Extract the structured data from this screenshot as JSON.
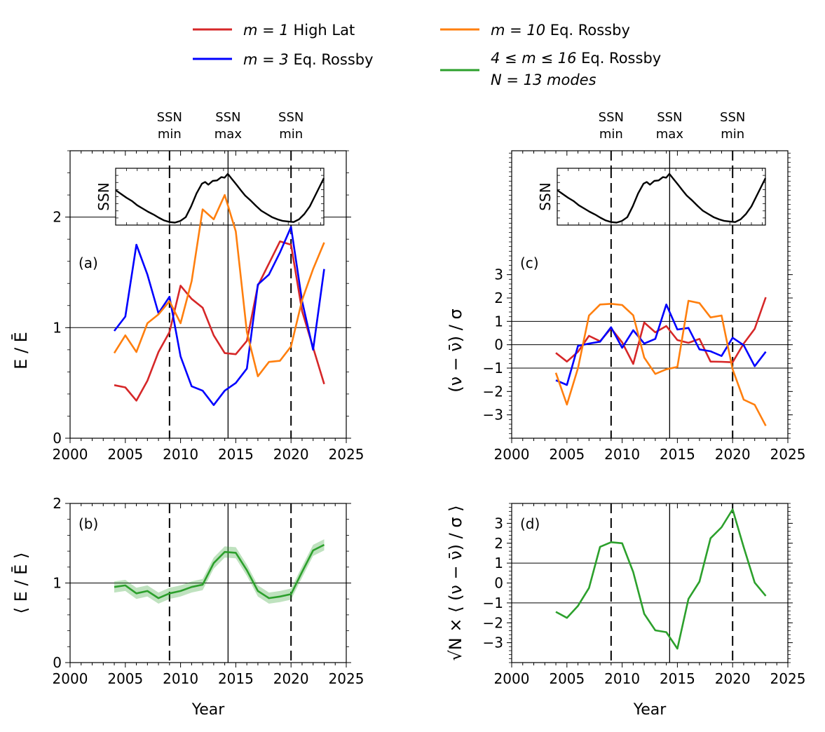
{
  "legend": {
    "entries": [
      {
        "key": "high_lat",
        "label_math": "m = 1",
        "label_text": " High Lat",
        "color": "#d62728"
      },
      {
        "key": "m3",
        "label_math": "m = 3",
        "label_text": " Eq. Rossby",
        "color": "#0000ff"
      },
      {
        "key": "m10",
        "label_math": "m = 10",
        "label_text": " Eq. Rossby",
        "color": "#ff7f0e"
      },
      {
        "key": "band",
        "label_math": "4 ≤ m ≤ 16",
        "label_text": " Eq. Rossby",
        "label_line2": "N = 13 modes",
        "color": "#2ca02c"
      }
    ]
  },
  "ssn_markers": {
    "labels": [
      {
        "year": 2009.0,
        "line1": "SSN",
        "line2": "min",
        "style": "dashed"
      },
      {
        "year": 2014.3,
        "line1": "SSN",
        "line2": "max",
        "style": "solid"
      },
      {
        "year": 2020.0,
        "line1": "SSN",
        "line2": "min",
        "style": "dashed"
      }
    ]
  },
  "chart_data": [
    {
      "panel": "a",
      "type": "line",
      "panel_label": "(a)",
      "ylabel": "E / Ē",
      "xlabel": "",
      "xlim": [
        2000,
        2025
      ],
      "ylim": [
        0,
        2.6
      ],
      "xticks": [
        "2000",
        "2005",
        "2010",
        "2015",
        "2020",
        "2025"
      ],
      "yticks": [
        "0",
        "1",
        "2"
      ],
      "hlines": [
        1,
        2
      ],
      "inset_ylabel": "SSN",
      "x": [
        2004,
        2005,
        2006,
        2007,
        2008,
        2009,
        2010,
        2011,
        2012,
        2013,
        2014,
        2015,
        2016,
        2017,
        2018,
        2019,
        2020,
        2021,
        2022,
        2023
      ],
      "series": [
        {
          "name": "m = 1 High Lat",
          "color": "#d62728",
          "values": [
            0.48,
            0.46,
            0.34,
            0.52,
            0.78,
            0.96,
            1.38,
            1.26,
            1.18,
            0.93,
            0.77,
            0.76,
            0.88,
            1.38,
            1.58,
            1.78,
            1.75,
            1.15,
            0.82,
            0.49
          ]
        },
        {
          "name": "m = 3 Eq. Rossby",
          "color": "#0000ff",
          "values": [
            0.97,
            1.1,
            1.75,
            1.48,
            1.13,
            1.28,
            0.74,
            0.47,
            0.43,
            0.3,
            0.43,
            0.5,
            0.63,
            1.39,
            1.48,
            1.68,
            1.91,
            1.24,
            0.8,
            1.53
          ]
        },
        {
          "name": "m = 10 Eq. Rossby",
          "color": "#ff7f0e",
          "values": [
            0.77,
            0.93,
            0.78,
            1.04,
            1.12,
            1.24,
            1.04,
            1.42,
            2.07,
            1.98,
            2.2,
            1.87,
            0.96,
            0.56,
            0.69,
            0.7,
            0.83,
            1.25,
            1.53,
            1.77
          ]
        }
      ]
    },
    {
      "panel": "b",
      "type": "line",
      "panel_label": "(b)",
      "ylabel": "⟨ E / Ē ⟩",
      "xlabel": "Year",
      "xlim": [
        2000,
        2025
      ],
      "ylim": [
        0,
        2
      ],
      "xticks": [
        "2000",
        "2005",
        "2010",
        "2015",
        "2020",
        "2025"
      ],
      "yticks": [
        "0",
        "1",
        "2"
      ],
      "hlines": [
        1
      ],
      "x": [
        2004,
        2005,
        2006,
        2007,
        2008,
        2009,
        2010,
        2011,
        2012,
        2013,
        2014,
        2015,
        2016,
        2017,
        2018,
        2019,
        2020,
        2021,
        2022,
        2023
      ],
      "series": [
        {
          "name": "4 ≤ m ≤ 16 Eq. Rossby",
          "color": "#2ca02c",
          "values": [
            0.95,
            0.97,
            0.87,
            0.9,
            0.81,
            0.87,
            0.9,
            0.95,
            0.98,
            1.25,
            1.39,
            1.38,
            1.16,
            0.9,
            0.81,
            0.83,
            0.86,
            1.14,
            1.41,
            1.48
          ],
          "band_half_width": 0.07
        }
      ]
    },
    {
      "panel": "c",
      "type": "line",
      "panel_label": "(c)",
      "ylabel": "(ν − ν̄) / σ",
      "xlabel": "",
      "xlim": [
        2000,
        2025
      ],
      "ylim": [
        -4,
        8.3
      ],
      "xticks": [
        "2000",
        "2005",
        "2010",
        "2015",
        "2020",
        "2025"
      ],
      "yticks": [
        "−3",
        "−2",
        "−1",
        "0",
        "1",
        "2",
        "3"
      ],
      "ytick_values": [
        -3,
        -2,
        -1,
        0,
        1,
        2,
        3
      ],
      "hlines": [
        -1,
        0,
        1
      ],
      "inset_ylabel": "SSN",
      "x": [
        2004,
        2005,
        2006,
        2007,
        2008,
        2009,
        2010,
        2011,
        2012,
        2013,
        2014,
        2015,
        2016,
        2017,
        2018,
        2019,
        2020,
        2021,
        2022,
        2023
      ],
      "series": [
        {
          "name": "m = 1 High Lat",
          "color": "#d62728",
          "values": [
            -0.35,
            -0.72,
            -0.3,
            0.38,
            0.15,
            0.7,
            0.1,
            -0.82,
            0.95,
            0.53,
            0.8,
            0.2,
            0.08,
            0.25,
            -0.72,
            -0.73,
            -0.75,
            0.05,
            0.68,
            2.03
          ]
        },
        {
          "name": "m = 3 Eq. Rossby",
          "color": "#0000ff",
          "values": [
            -1.52,
            -1.72,
            -0.05,
            0.05,
            0.13,
            0.75,
            -0.13,
            0.62,
            0.05,
            0.25,
            1.72,
            0.65,
            0.72,
            -0.2,
            -0.28,
            -0.48,
            0.3,
            -0.02,
            -0.92,
            -0.3
          ]
        },
        {
          "name": "m = 10 Eq. Rossby",
          "color": "#ff7f0e",
          "values": [
            -1.2,
            -2.56,
            -1.0,
            1.25,
            1.72,
            1.75,
            1.7,
            1.26,
            -0.55,
            -1.25,
            -1.05,
            -0.95,
            1.88,
            1.78,
            1.17,
            1.25,
            -1.05,
            -2.35,
            -2.57,
            -3.47
          ]
        }
      ]
    },
    {
      "panel": "d",
      "type": "line",
      "panel_label": "(d)",
      "ylabel": "√N × ⟨ (ν − ν̄) / σ ⟩",
      "xlabel": "Year",
      "xlim": [
        2000,
        2025
      ],
      "ylim": [
        -4,
        4
      ],
      "xticks": [
        "2000",
        "2005",
        "2010",
        "2015",
        "2020",
        "2025"
      ],
      "yticks": [
        "−3",
        "−2",
        "−1",
        "0",
        "1",
        "2",
        "3"
      ],
      "ytick_values": [
        -3,
        -2,
        -1,
        0,
        1,
        2,
        3
      ],
      "hlines": [
        -1,
        1
      ],
      "x": [
        2004,
        2005,
        2006,
        2007,
        2008,
        2009,
        2010,
        2011,
        2012,
        2013,
        2014,
        2015,
        2016,
        2017,
        2018,
        2019,
        2020,
        2021,
        2022,
        2023
      ],
      "series": [
        {
          "name": "4 ≤ m ≤ 16 Eq. Rossby",
          "color": "#2ca02c",
          "values": [
            -1.45,
            -1.75,
            -1.15,
            -0.25,
            1.82,
            2.05,
            2.0,
            0.55,
            -1.55,
            -2.38,
            -2.47,
            -3.3,
            -0.8,
            0.07,
            2.25,
            2.8,
            3.7,
            1.8,
            0.02,
            -0.65
          ]
        }
      ]
    }
  ],
  "ssn_curve": {
    "x": [
      2004,
      2004.5,
      2005,
      2005.5,
      2006,
      2006.5,
      2007,
      2007.5,
      2008,
      2008.5,
      2009,
      2009.5,
      2010,
      2010.5,
      2011,
      2011.5,
      2012,
      2012.3,
      2012.6,
      2013,
      2013.4,
      2013.8,
      2014.1,
      2014.4,
      2014.8,
      2015.2,
      2015.6,
      2016,
      2016.5,
      2017,
      2017.5,
      2018,
      2018.5,
      2019,
      2019.5,
      2020,
      2020.5,
      2021,
      2021.5,
      2022,
      2022.5,
      2023,
      2023.3
    ],
    "values": [
      62,
      55,
      48,
      42,
      34,
      28,
      22,
      17,
      11,
      6,
      3,
      2,
      5,
      12,
      32,
      56,
      74,
      77,
      72,
      79,
      80,
      86,
      85,
      92,
      82,
      72,
      62,
      52,
      43,
      33,
      24,
      18,
      12,
      8,
      5,
      4,
      3,
      8,
      18,
      32,
      52,
      72,
      84
    ]
  }
}
